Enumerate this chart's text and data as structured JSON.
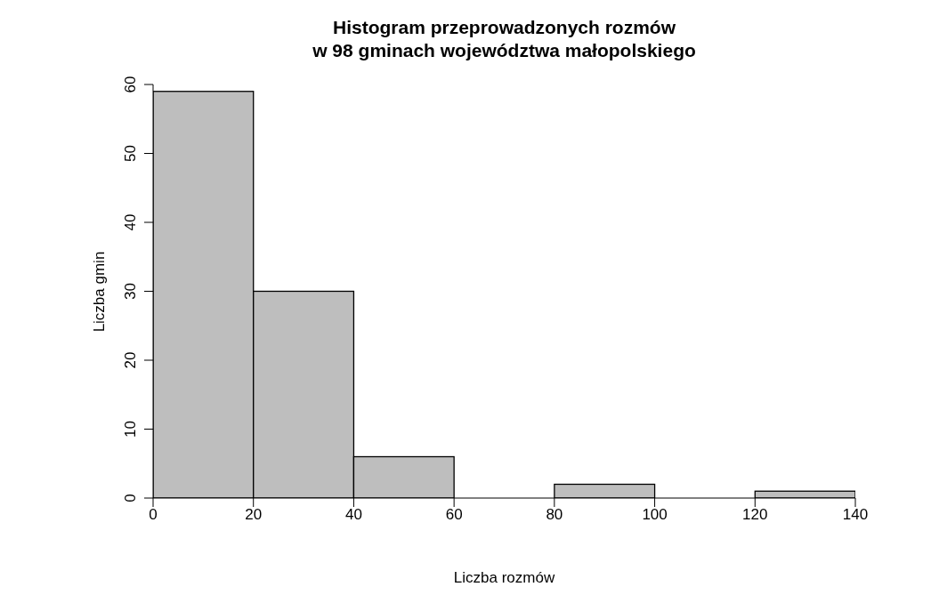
{
  "chart_data": {
    "type": "histogram",
    "title": "Histogram przeprowadzonych rozmów\nw 98 gminach województwa małopolskiego",
    "xlabel": "Liczba rozmów",
    "ylabel": "Liczba gmin",
    "bins": [
      0,
      20,
      40,
      60,
      80,
      100,
      120,
      140
    ],
    "values": [
      59,
      30,
      6,
      0,
      2,
      0,
      1
    ],
    "color": "#bebebe",
    "xlim": [
      0,
      140
    ],
    "xticks": [
      0,
      20,
      40,
      60,
      80,
      100,
      120,
      140
    ],
    "ylim": [
      0,
      60
    ],
    "yticks": [
      0,
      10,
      20,
      30,
      40,
      50,
      60
    ],
    "grid": false
  }
}
